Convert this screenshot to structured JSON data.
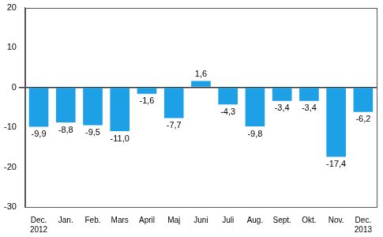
{
  "chart_data": {
    "type": "bar",
    "categories": [
      [
        "Dec.",
        "2012"
      ],
      "Jan.",
      "Feb.",
      "Mars",
      "April",
      "Maj",
      "Juni",
      "Juli",
      "Aug.",
      "Sept.",
      "Okt.",
      "Nov.",
      [
        "Dec.",
        "2013"
      ]
    ],
    "values": [
      -9.9,
      -8.8,
      -9.5,
      -11.0,
      -1.6,
      -7.7,
      1.6,
      -4.3,
      -9.8,
      -3.4,
      -3.4,
      -17.4,
      -6.2
    ],
    "value_labels": [
      "-9,9",
      "-8,8",
      "-9,5",
      "-11,0",
      "-1,6",
      "-7,7",
      "1,6",
      "-4,3",
      "-9,8",
      "-3,4",
      "-3,4",
      "-17,4",
      "-6,2"
    ],
    "data_labels": true,
    "color": "#1ea0e6",
    "ylim": [
      -30,
      20
    ],
    "yticks": [
      -30,
      -20,
      -10,
      0,
      10,
      20
    ],
    "grid": false
  }
}
